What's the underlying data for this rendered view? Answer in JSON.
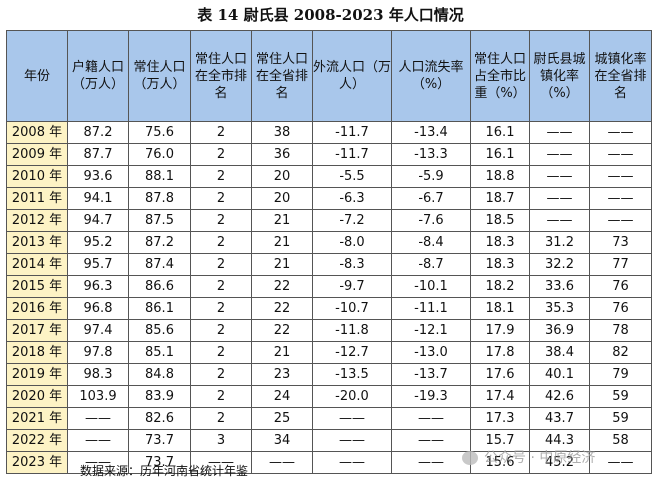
{
  "title": "表 14 尉氏县 2008-2023 年人口情况",
  "headers": [
    "年份",
    "户籍人口（万人）",
    "常住人口（万人）",
    "常住人口在全市排名",
    "常住人口在全省排名",
    "外流人口（万人）",
    "人口流失率（%）",
    "常住人口占全市比重（%）",
    "尉氏县城镇化率（%）",
    "城镇化率在全省排名"
  ],
  "rows": [
    [
      "2008 年",
      "87.2",
      "75.6",
      "2",
      "38",
      "-11.7",
      "-13.4",
      "16.1",
      "——",
      "——"
    ],
    [
      "2009 年",
      "87.7",
      "76.0",
      "2",
      "36",
      "-11.7",
      "-13.3",
      "16.1",
      "——",
      "——"
    ],
    [
      "2010 年",
      "93.6",
      "88.1",
      "2",
      "20",
      "-5.5",
      "-5.9",
      "18.8",
      "——",
      "——"
    ],
    [
      "2011 年",
      "94.1",
      "87.8",
      "2",
      "20",
      "-6.3",
      "-6.7",
      "18.7",
      "——",
      "——"
    ],
    [
      "2012 年",
      "94.7",
      "87.5",
      "2",
      "21",
      "-7.2",
      "-7.6",
      "18.5",
      "——",
      "——"
    ],
    [
      "2013 年",
      "95.2",
      "87.2",
      "2",
      "21",
      "-8.0",
      "-8.4",
      "18.3",
      "31.2",
      "73"
    ],
    [
      "2014 年",
      "95.7",
      "87.4",
      "2",
      "21",
      "-8.3",
      "-8.7",
      "18.3",
      "32.2",
      "77"
    ],
    [
      "2015 年",
      "96.3",
      "86.6",
      "2",
      "22",
      "-9.7",
      "-10.1",
      "18.2",
      "33.6",
      "76"
    ],
    [
      "2016 年",
      "96.8",
      "86.1",
      "2",
      "22",
      "-10.7",
      "-11.1",
      "18.1",
      "35.3",
      "76"
    ],
    [
      "2017 年",
      "97.4",
      "85.6",
      "2",
      "22",
      "-11.8",
      "-12.1",
      "17.9",
      "36.9",
      "78"
    ],
    [
      "2018 年",
      "97.8",
      "85.1",
      "2",
      "21",
      "-12.7",
      "-13.0",
      "17.8",
      "38.4",
      "82"
    ],
    [
      "2019 年",
      "98.3",
      "84.8",
      "2",
      "23",
      "-13.5",
      "-13.7",
      "17.6",
      "40.1",
      "79"
    ],
    [
      "2020 年",
      "103.9",
      "83.9",
      "2",
      "24",
      "-20.0",
      "-19.3",
      "17.4",
      "42.6",
      "59"
    ],
    [
      "2021 年",
      "——",
      "82.6",
      "2",
      "25",
      "——",
      "——",
      "17.3",
      "43.7",
      "59"
    ],
    [
      "2022 年",
      "——",
      "73.7",
      "3",
      "34",
      "——",
      "——",
      "15.7",
      "44.3",
      "58"
    ],
    [
      "2023 年",
      "——",
      "73.7",
      "——",
      "——",
      "——",
      "——",
      "15.6",
      "45.2",
      "——"
    ]
  ],
  "source": "数据来源：历年河南省统计年鉴",
  "watermark": "公众号 · 中原经济",
  "colors": {
    "header_bg": "#a9c7eb",
    "year_bg": "#fdf3c5",
    "border": "#555555"
  }
}
